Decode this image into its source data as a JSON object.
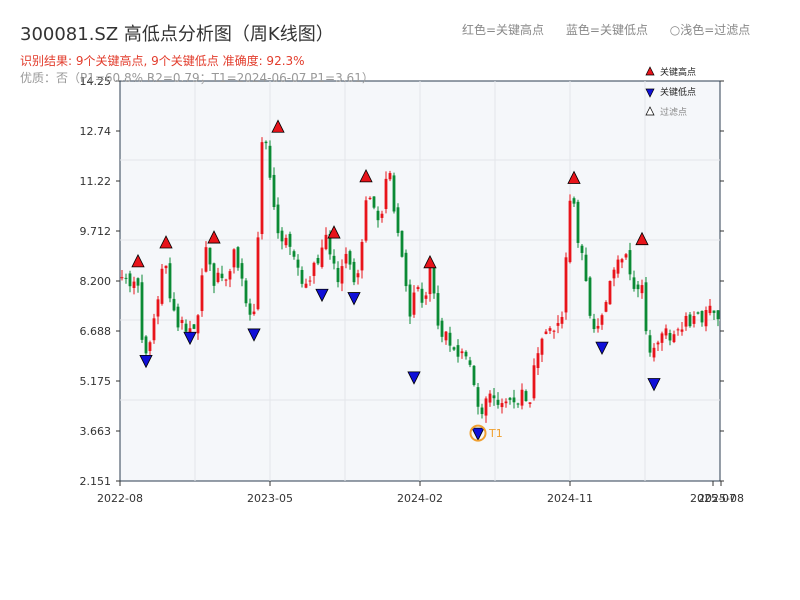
{
  "header": {
    "title": "300081.SZ 高低点分析图（周K线图）",
    "legend": [
      "红色=关键高点",
      "蓝色=关键低点",
      "○浅色=过滤点"
    ],
    "result_line": "识别结果: 9个关键高点, 9个关键低点  准确度: 92.3%",
    "quality_line": "优质：否（P1=60.8%  R2=0.79；T1=2024-06-07 P1=3.61）"
  },
  "chart_data": {
    "type": "candlestick",
    "yticks": [
      "2.151",
      "3.663",
      "5.175",
      "6.688",
      "8.200",
      "9.712",
      "11.22",
      "12.74",
      "14.25"
    ],
    "ylim": [
      2.151,
      14.25
    ],
    "xticks": [
      "2022-08",
      "2023-05",
      "2024-02",
      "2024-11",
      "2025-07",
      "2025-08"
    ],
    "legend": [
      {
        "label": "关键高点",
        "color": "#e8141b"
      },
      {
        "label": "关键低点",
        "color": "#1010d8"
      },
      {
        "label": "过滤点",
        "color": "#ffffff"
      }
    ],
    "annotation": "T1",
    "colors": {
      "up": "#e8141b",
      "down": "#0b8a35",
      "high": "#e8141b",
      "low": "#1010d8",
      "t1": "#f0a030"
    },
    "close_path": [
      8.3,
      7.9,
      8.6,
      6.0,
      6.4,
      7.6,
      9.2,
      7.4,
      7.0,
      6.8,
      6.7,
      7.5,
      9.3,
      8.2,
      8.3,
      8.1,
      9.1,
      8.3,
      7.1,
      7.3,
      12.8,
      11.6,
      10.0,
      9.4,
      9.1,
      8.7,
      8.1,
      8.5,
      8.6,
      9.5,
      8.6,
      8.2,
      9.0,
      8.0,
      8.8,
      11.2,
      10.4,
      10.0,
      11.7,
      9.9,
      9.0,
      7.1,
      8.3,
      7.4,
      8.7,
      6.9,
      6.6,
      6.3,
      6.0,
      6.0,
      5.6,
      4.0,
      4.5,
      4.7,
      4.3,
      4.4,
      4.6,
      4.8,
      4.4,
      5.9,
      6.4,
      6.9,
      6.8,
      7.5,
      11.2,
      9.5,
      8.5,
      6.9,
      6.8,
      7.5,
      8.3,
      8.8,
      9.1,
      8.0,
      8.3,
      5.8,
      6.2,
      6.5,
      6.6,
      6.6,
      6.9,
      7.0,
      7.1,
      7.2,
      7.3,
      7.2
    ],
    "key_highs": [
      {
        "x": 4,
        "y": 8.78
      },
      {
        "x": 11,
        "y": 9.35
      },
      {
        "x": 23,
        "y": 9.5
      },
      {
        "x": 39,
        "y": 12.85
      },
      {
        "x": 53,
        "y": 9.65
      },
      {
        "x": 61,
        "y": 11.35
      },
      {
        "x": 77,
        "y": 8.75
      },
      {
        "x": 113,
        "y": 11.3
      },
      {
        "x": 130,
        "y": 9.45
      }
    ],
    "key_lows": [
      {
        "x": 6,
        "y": 5.8
      },
      {
        "x": 17,
        "y": 6.5
      },
      {
        "x": 33,
        "y": 6.6
      },
      {
        "x": 50,
        "y": 7.8
      },
      {
        "x": 58,
        "y": 7.7
      },
      {
        "x": 73,
        "y": 5.3
      },
      {
        "x": 89,
        "y": 3.6
      },
      {
        "x": 120,
        "y": 6.2
      },
      {
        "x": 133,
        "y": 5.1
      }
    ]
  }
}
